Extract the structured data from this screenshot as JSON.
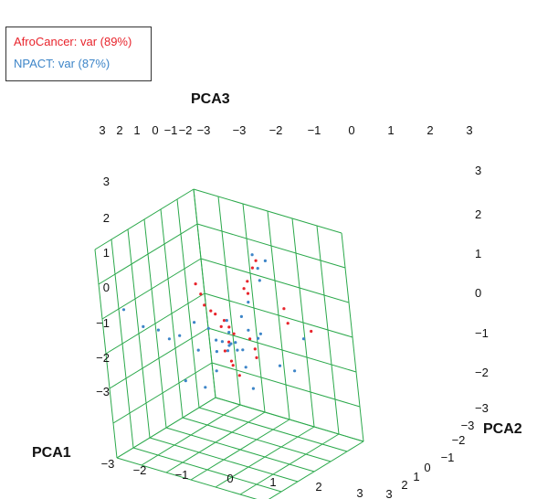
{
  "chart_data": {
    "type": "scatter",
    "legend": {
      "placement": "top-left"
    },
    "axes": {
      "x": {
        "label": "PCA1",
        "range": [
          -3,
          3
        ],
        "ticks": [
          "-3",
          "-2",
          "-1",
          "0",
          "1",
          "2",
          "3"
        ]
      },
      "y": {
        "label": "PCA2",
        "range": [
          -3,
          3
        ],
        "ticks": [
          "-3",
          "-2",
          "-1",
          "0",
          "1",
          "2",
          "3"
        ]
      },
      "z": {
        "label": "PCA3",
        "range": [
          -3,
          3
        ],
        "ticks": [
          "-3",
          "-2",
          "-1",
          "0",
          "1",
          "2",
          "3"
        ]
      }
    },
    "top_tick_rows": {
      "left": [
        "3",
        "2",
        "1",
        "0",
        "-1",
        "-2",
        "-3"
      ],
      "right": [
        "-3",
        "-2",
        "-1",
        "0",
        "1",
        "2",
        "3"
      ]
    },
    "right_z_ticks": [
      "3",
      "2",
      "1",
      "0",
      "-1",
      "-2",
      "-3"
    ],
    "bottom_y_ticks": [
      "3",
      "2",
      "1",
      "0",
      "-1",
      "-2",
      "-3"
    ],
    "grid": true,
    "series": [
      {
        "name": "AfroCancer: var (89%)",
        "color": "#e8242c",
        "points": [
          [
            0.9,
            0.8,
            2.4
          ],
          [
            0.8,
            0.7,
            2.2
          ],
          [
            0.6,
            0.6,
            1.8
          ],
          [
            0.5,
            0.5,
            1.6
          ],
          [
            0.5,
            0.7,
            1.4
          ],
          [
            -0.7,
            -0.6,
            1.8
          ],
          [
            -0.6,
            -0.5,
            1.5
          ],
          [
            -0.5,
            -0.5,
            1.2
          ],
          [
            -0.4,
            -0.3,
            1.0
          ],
          [
            -0.1,
            0.0,
            0.7
          ],
          [
            0.0,
            0.1,
            0.5
          ],
          [
            0.1,
            0.2,
            0.3
          ],
          [
            0.0,
            0.0,
            0.1
          ],
          [
            -0.2,
            0.0,
            -0.2
          ],
          [
            0.1,
            -0.1,
            -0.4
          ],
          [
            0.0,
            0.1,
            -0.6
          ],
          [
            0.6,
            0.4,
            0.2
          ],
          [
            0.7,
            0.5,
            -0.1
          ],
          [
            0.8,
            0.4,
            -0.3
          ],
          [
            1.5,
            1.3,
            1.0
          ],
          [
            1.6,
            1.3,
            0.6
          ],
          [
            2.1,
            1.9,
            0.3
          ],
          [
            -0.3,
            -0.2,
            0.9
          ],
          [
            -0.4,
            0.2,
            0.4
          ],
          [
            0.3,
            0.0,
            -0.8
          ]
        ]
      },
      {
        "name": "NPACT: var (87%)",
        "color": "#3d85c8",
        "points": [
          [
            0.0,
            0.0,
            0.0
          ],
          [
            0.2,
            0.1,
            0.1
          ],
          [
            -0.2,
            -0.1,
            0.1
          ],
          [
            0.1,
            0.3,
            -0.2
          ],
          [
            -0.1,
            0.2,
            0.3
          ],
          [
            0.4,
            0.2,
            -0.1
          ],
          [
            -0.4,
            -0.2,
            -0.2
          ],
          [
            0.3,
            -0.3,
            0.2
          ],
          [
            -0.3,
            0.3,
            -0.3
          ],
          [
            0.5,
            0.5,
            0.4
          ],
          [
            -0.5,
            -0.4,
            0.5
          ],
          [
            0.6,
            0.0,
            -0.5
          ],
          [
            -0.6,
            0.1,
            0.0
          ],
          [
            0.2,
            0.6,
            0.7
          ],
          [
            -0.2,
            -0.6,
            -0.6
          ],
          [
            0.8,
            0.6,
            0.2
          ],
          [
            -0.8,
            -0.7,
            -0.1
          ],
          [
            1.0,
            0.5,
            0.4
          ],
          [
            -1.0,
            -0.5,
            0.6
          ],
          [
            0.4,
            0.8,
            1.1
          ],
          [
            0.9,
            0.9,
            1.8
          ],
          [
            0.8,
            1.0,
            2.1
          ],
          [
            0.7,
            0.9,
            2.5
          ],
          [
            1.0,
            1.2,
            2.3
          ],
          [
            -1.3,
            -1.0,
            0.3
          ],
          [
            -1.6,
            -1.2,
            0.2
          ],
          [
            -1.8,
            -1.5,
            0.5
          ],
          [
            -2.2,
            -1.8,
            0.6
          ],
          [
            1.3,
            1.0,
            -0.6
          ],
          [
            1.6,
            1.4,
            -0.8
          ],
          [
            -0.6,
            -0.8,
            -1.1
          ],
          [
            0.6,
            0.3,
            -1.2
          ],
          [
            1.9,
            1.7,
            0.1
          ],
          [
            -2.5,
            -2.4,
            1.2
          ],
          [
            -1.1,
            -1.2,
            -0.9
          ],
          [
            0.3,
            -0.4,
            0.9
          ]
        ]
      }
    ]
  }
}
